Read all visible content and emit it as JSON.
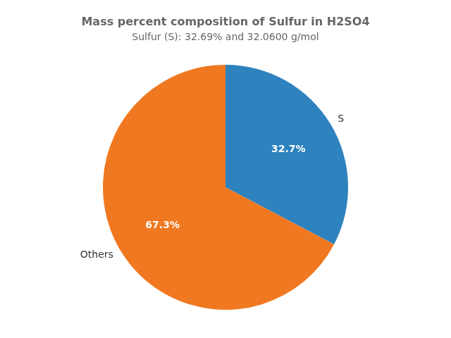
{
  "chart_data": {
    "type": "pie",
    "title": "Mass percent composition of Sulfur in H2SO4",
    "subtitle": "Sulfur (S): 32.69% and 32.0600 g/mol",
    "categories": [
      "S",
      "Others"
    ],
    "values": [
      32.7,
      67.3
    ],
    "value_labels": [
      "32.7%",
      "67.3%"
    ],
    "colors": [
      "#2e82be",
      "#f07820"
    ],
    "data_labels": true
  }
}
